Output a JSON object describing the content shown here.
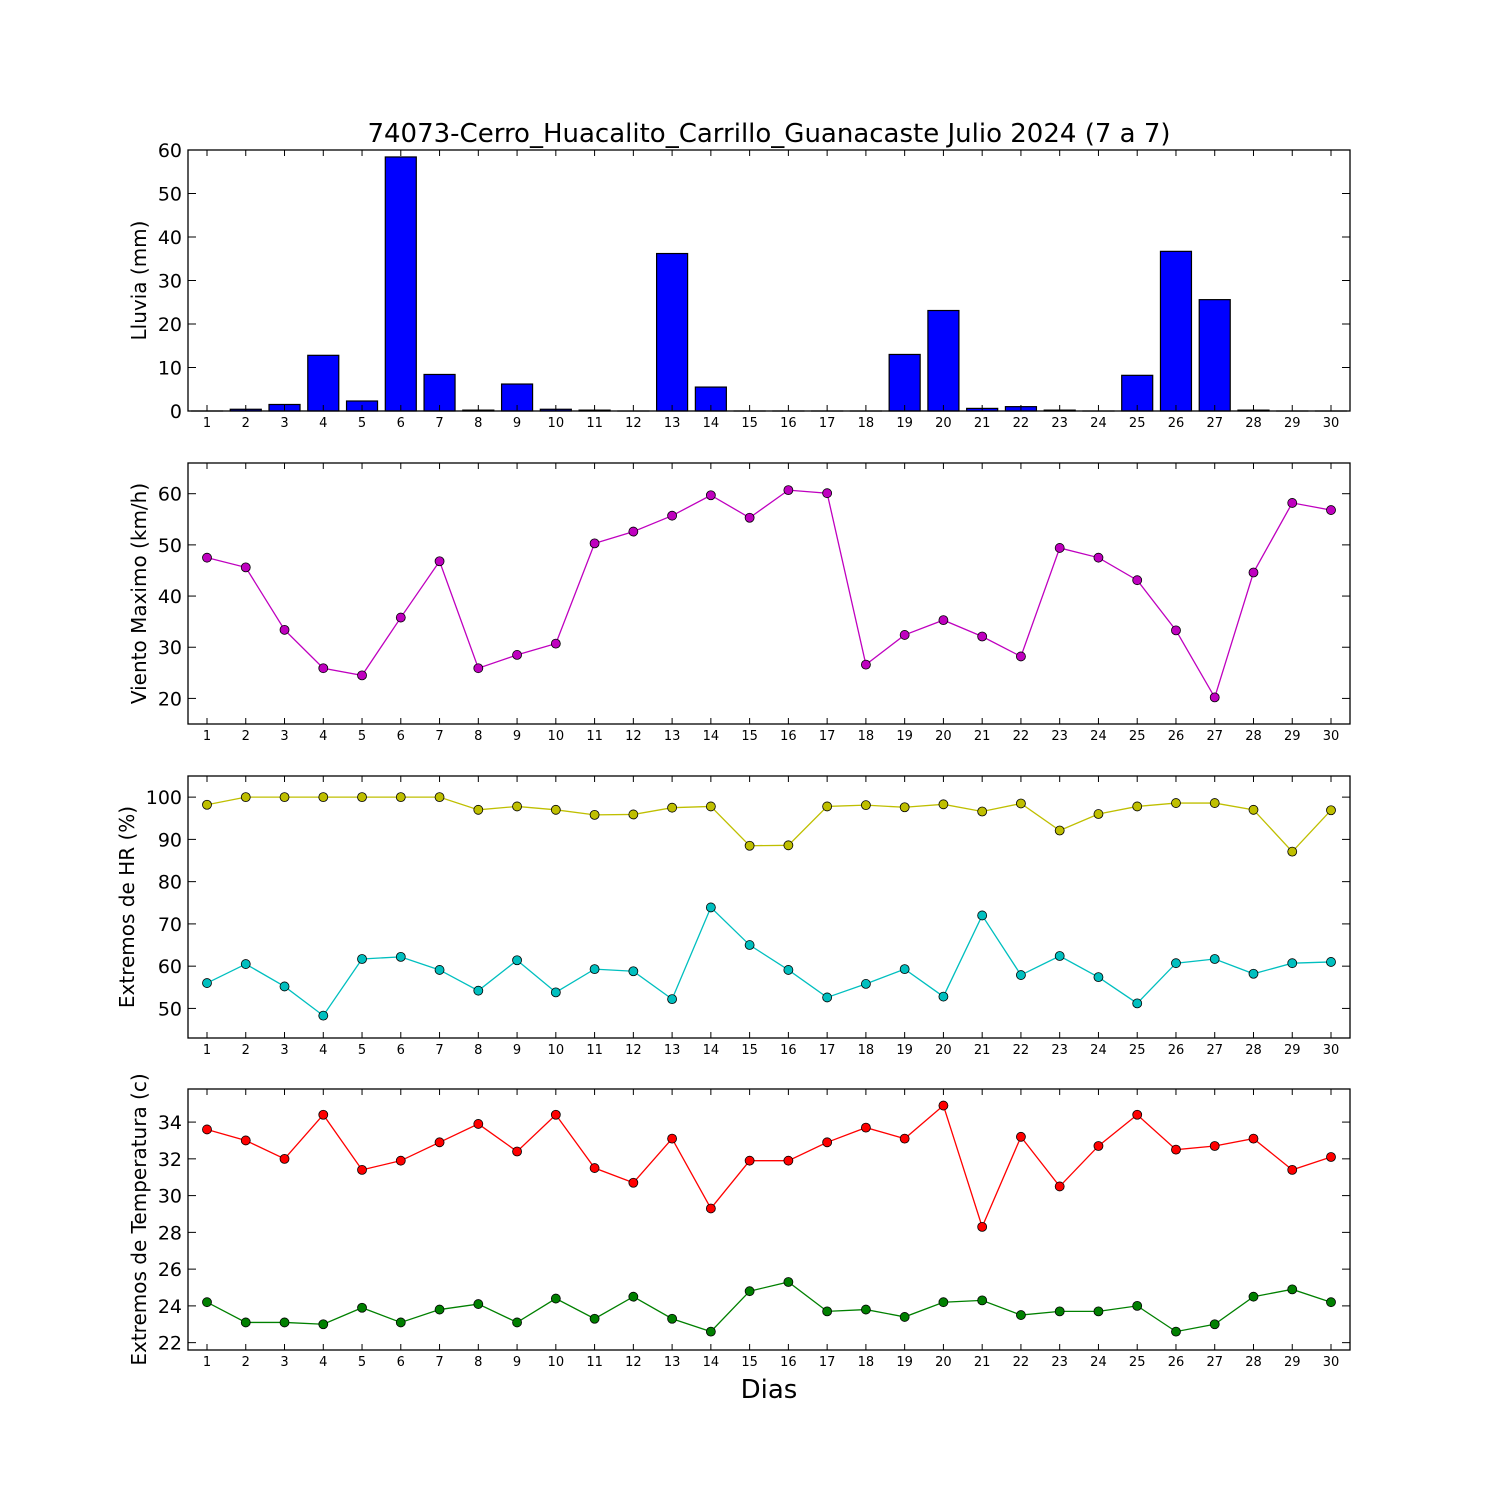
{
  "figure": {
    "title": "74073-Cerro_Huacalito_Carrillo_Guanacaste Julio 2024  (7 a 7)",
    "xlabel": "Dias"
  },
  "chart_data": [
    {
      "type": "bar",
      "title": "74073-Cerro_Huacalito_Carrillo_Guanacaste Julio 2024  (7 a 7)",
      "ylabel": "Lluvia (mm)",
      "xlabel": "",
      "ylim": [
        0,
        60
      ],
      "yticks": [
        0,
        10,
        20,
        30,
        40,
        50,
        60
      ],
      "grid": false,
      "categories": [
        "1",
        "2",
        "3",
        "4",
        "5",
        "6",
        "7",
        "8",
        "9",
        "10",
        "11",
        "12",
        "13",
        "14",
        "15",
        "16",
        "17",
        "18",
        "19",
        "20",
        "21",
        "22",
        "23",
        "24",
        "25",
        "26",
        "27",
        "28",
        "29",
        "30"
      ],
      "series": [
        {
          "color": "#0000ff",
          "values": [
            0,
            0.4,
            1.5,
            12.8,
            2.3,
            58.4,
            8.4,
            0.2,
            6.2,
            0.4,
            0.2,
            0,
            36.2,
            5.5,
            0,
            0,
            0,
            0,
            13.0,
            23.1,
            0.6,
            1.0,
            0.2,
            0,
            8.2,
            36.7,
            25.6,
            0.2,
            0,
            0
          ]
        }
      ]
    },
    {
      "type": "line",
      "ylabel": "Viento Maximo (km/h)",
      "xlabel": "",
      "ylim": [
        15,
        66
      ],
      "yticks": [
        20,
        30,
        40,
        50,
        60
      ],
      "grid": false,
      "x": [
        1,
        2,
        3,
        4,
        5,
        6,
        7,
        8,
        9,
        10,
        11,
        12,
        13,
        14,
        15,
        16,
        17,
        18,
        19,
        20,
        21,
        22,
        23,
        24,
        25,
        26,
        27,
        28,
        29,
        30
      ],
      "series": [
        {
          "color": "#bf00bf",
          "values": [
            47.5,
            45.6,
            33.4,
            25.9,
            24.5,
            35.8,
            46.8,
            25.9,
            28.5,
            30.7,
            50.3,
            52.6,
            55.7,
            59.7,
            55.3,
            60.7,
            60.1,
            26.6,
            32.4,
            35.3,
            32.1,
            28.2,
            49.4,
            47.5,
            43.1,
            33.3,
            20.2,
            44.6,
            58.2,
            56.8
          ]
        }
      ]
    },
    {
      "type": "line",
      "ylabel": "Extremos de HR (%)",
      "xlabel": "",
      "ylim": [
        43,
        105
      ],
      "yticks": [
        50,
        60,
        70,
        80,
        90,
        100
      ],
      "grid": false,
      "x": [
        1,
        2,
        3,
        4,
        5,
        6,
        7,
        8,
        9,
        10,
        11,
        12,
        13,
        14,
        15,
        16,
        17,
        18,
        19,
        20,
        21,
        22,
        23,
        24,
        25,
        26,
        27,
        28,
        29,
        30
      ],
      "series": [
        {
          "color": "#bfbf00",
          "values": [
            98.2,
            100,
            100,
            100,
            100,
            100,
            100,
            97.0,
            97.8,
            97.0,
            95.8,
            95.9,
            97.5,
            97.8,
            88.5,
            88.6,
            97.8,
            98.1,
            97.6,
            98.3,
            96.6,
            98.5,
            92.1,
            96.0,
            97.8,
            98.6,
            98.6,
            97.0,
            87.1,
            96.9
          ]
        },
        {
          "color": "#00bfbf",
          "values": [
            56.0,
            60.5,
            55.2,
            48.3,
            61.7,
            62.2,
            59.1,
            54.2,
            61.4,
            53.8,
            59.3,
            58.8,
            52.2,
            73.9,
            65.0,
            59.1,
            52.6,
            55.8,
            59.3,
            52.8,
            72.0,
            57.9,
            62.4,
            57.4,
            51.2,
            60.7,
            61.7,
            58.2,
            60.7,
            61.0
          ]
        }
      ]
    },
    {
      "type": "line",
      "ylabel": "Extremos de Temperatura (c)",
      "xlabel": "Dias",
      "ylim": [
        21.6,
        35.8
      ],
      "yticks": [
        22,
        24,
        26,
        28,
        30,
        32,
        34
      ],
      "grid": false,
      "x": [
        1,
        2,
        3,
        4,
        5,
        6,
        7,
        8,
        9,
        10,
        11,
        12,
        13,
        14,
        15,
        16,
        17,
        18,
        19,
        20,
        21,
        22,
        23,
        24,
        25,
        26,
        27,
        28,
        29,
        30
      ],
      "series": [
        {
          "color": "#ff0000",
          "values": [
            33.6,
            33.0,
            32.0,
            34.4,
            31.4,
            31.9,
            32.9,
            33.9,
            32.4,
            34.4,
            31.5,
            30.7,
            33.1,
            29.3,
            31.9,
            31.9,
            32.9,
            33.7,
            33.1,
            34.9,
            28.3,
            33.2,
            30.5,
            32.7,
            34.4,
            32.5,
            32.7,
            33.1,
            31.4,
            32.1
          ]
        },
        {
          "color": "#008000",
          "values": [
            24.2,
            23.1,
            23.1,
            23.0,
            23.9,
            23.1,
            23.8,
            24.1,
            23.1,
            24.4,
            23.3,
            24.5,
            23.3,
            22.6,
            24.8,
            25.3,
            23.7,
            23.8,
            23.4,
            24.2,
            24.3,
            23.5,
            23.7,
            23.7,
            24.0,
            22.6,
            23.0,
            24.5,
            24.9,
            24.2
          ]
        }
      ]
    }
  ]
}
